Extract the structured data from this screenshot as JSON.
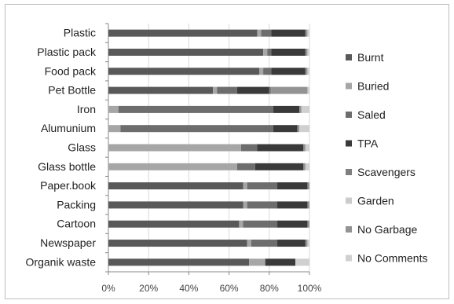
{
  "chart_data": {
    "type": "bar",
    "orientation": "horizontal",
    "stacked": "percent",
    "categories": [
      "Plastic",
      "Plastic pack",
      "Food pack",
      "Pet Bottle",
      "Iron",
      "Alumunium",
      "Glass",
      "Glass bottle",
      "Paper.book",
      "Packing",
      "Cartoon",
      "Newspaper",
      "Organik waste"
    ],
    "series": [
      {
        "name": "Burnt",
        "color": "#595959",
        "values": [
          74,
          77,
          75,
          52,
          0,
          0,
          0,
          0,
          67,
          67,
          65,
          69,
          70
        ]
      },
      {
        "name": "Buried",
        "color": "#a6a6a6",
        "values": [
          2,
          2,
          2,
          2,
          5,
          6,
          66,
          64,
          2,
          2,
          2,
          2,
          8
        ]
      },
      {
        "name": "Saled",
        "color": "#6d6d6d",
        "values": [
          5,
          2,
          4,
          10,
          77,
          76,
          8,
          9,
          15,
          15,
          17,
          13,
          0
        ]
      },
      {
        "name": "TPA",
        "color": "#3a3a3a",
        "values": [
          17,
          17,
          17,
          16,
          13,
          12,
          23,
          24,
          15,
          15,
          15,
          14,
          15
        ]
      },
      {
        "name": "Scavengers",
        "color": "#7f7f7f",
        "values": [
          0,
          0,
          0,
          1,
          0,
          0,
          0,
          0,
          0,
          0,
          0,
          0,
          0
        ]
      },
      {
        "name": "Garden",
        "color": "#cccccc",
        "values": [
          0,
          0,
          0,
          0,
          0,
          0,
          0,
          0,
          0,
          0,
          0,
          0,
          0
        ]
      },
      {
        "name": "No Garbage",
        "color": "#939393",
        "values": [
          1,
          1,
          1,
          18,
          1,
          1,
          1,
          1,
          1,
          1,
          1,
          1,
          0
        ]
      },
      {
        "name": "No Comments",
        "color": "#d0d0d0",
        "values": [
          1,
          1,
          1,
          1,
          4,
          5,
          2,
          2,
          0,
          0,
          0,
          1,
          7
        ]
      }
    ],
    "xaxis": {
      "ticks": [
        "0%",
        "20%",
        "40%",
        "60%",
        "80%",
        "100%"
      ],
      "range": [
        0,
        100
      ]
    },
    "title": "",
    "xlabel": "",
    "ylabel": "",
    "grid": true,
    "legend_position": "right"
  }
}
